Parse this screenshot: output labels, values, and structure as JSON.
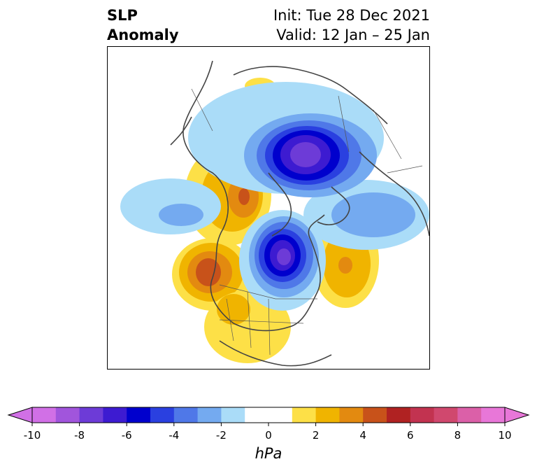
{
  "title": {
    "left_line1": "SLP",
    "left_line2": "Anomaly",
    "right_line1": "Init: Tue 28 Dec 2021",
    "right_line2": "Valid: 12 Jan – 25 Jan"
  },
  "colorbar": {
    "unit": "hPa",
    "ticks": [
      "-10",
      "-8",
      "-6",
      "-4",
      "-2",
      "0",
      "2",
      "4",
      "6",
      "8",
      "10"
    ],
    "colors": [
      "#d170e6",
      "#a155dc",
      "#6d3bd7",
      "#3d1bd1",
      "#0000cd",
      "#2a40e0",
      "#4f78e8",
      "#74aaf0",
      "#aadcf8",
      "#ffffff",
      "#ffffff",
      "#fde047",
      "#f0b400",
      "#e38a10",
      "#c8521a",
      "#b02222",
      "#c23350",
      "#d0486e",
      "#db60a8",
      "#e877d8"
    ]
  },
  "map": {
    "anomalies": [
      {
        "name": "arctic-low",
        "sign": "negative",
        "peak_hPa": -7
      },
      {
        "name": "hudson-bay-low",
        "sign": "negative",
        "peak_hPa": -7
      },
      {
        "name": "siberia-low",
        "sign": "negative",
        "peak_hPa": -3
      },
      {
        "name": "west-coast-high",
        "sign": "positive",
        "peak_hPa": 5
      },
      {
        "name": "alaska-siberia-high",
        "sign": "positive",
        "peak_hPa": 4
      },
      {
        "name": "north-atlantic-high",
        "sign": "positive",
        "peak_hPa": 4
      },
      {
        "name": "southern-us-high",
        "sign": "positive",
        "peak_hPa": 2
      }
    ]
  }
}
